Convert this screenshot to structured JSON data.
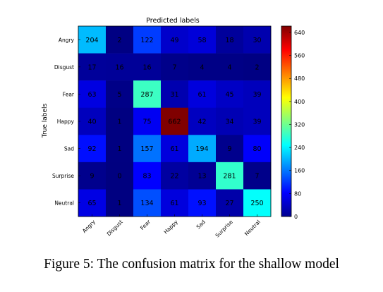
{
  "chart_data": {
    "type": "heatmap",
    "title": "Predicted labels",
    "xlabel": "",
    "ylabel": "True labels",
    "x_categories": [
      "Angry",
      "Disgust",
      "Fear",
      "Happy",
      "Sad",
      "Surprise",
      "Neutral"
    ],
    "y_categories": [
      "Angry",
      "Disgust",
      "Fear",
      "Happy",
      "Sad",
      "Surprise",
      "Neutral"
    ],
    "values": [
      [
        204,
        2,
        122,
        49,
        58,
        18,
        30
      ],
      [
        17,
        16,
        16,
        7,
        4,
        4,
        2
      ],
      [
        63,
        5,
        287,
        31,
        61,
        45,
        39
      ],
      [
        40,
        1,
        75,
        662,
        42,
        34,
        39
      ],
      [
        92,
        1,
        157,
        61,
        194,
        9,
        80
      ],
      [
        9,
        0,
        83,
        22,
        13,
        281,
        7
      ],
      [
        65,
        1,
        134,
        61,
        93,
        27,
        250
      ]
    ],
    "colormap": "jet",
    "color_range": [
      0,
      662
    ],
    "colorbar_ticks": [
      0,
      80,
      160,
      240,
      320,
      400,
      480,
      560,
      640
    ]
  },
  "caption": "Figure 5: The confusion matrix for the shallow model"
}
